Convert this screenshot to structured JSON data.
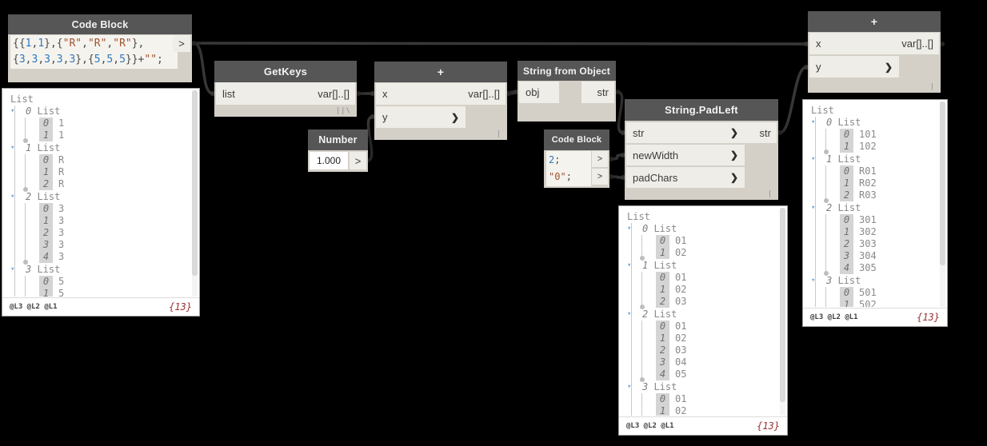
{
  "glyphs": {
    "chevron": "❯",
    "list_arrow": "▾"
  },
  "colors": {
    "canvas_bg": "#000000",
    "node_header": "#565656",
    "node_body": "#d4d0c8",
    "port_slot": "#efede7",
    "wire": "#383838",
    "code_number": "#2e77bd",
    "code_string": "#a0522d",
    "preview_count": "#9b3030"
  },
  "nodes": {
    "code_block_1": {
      "title": "Code Block",
      "output_label": ">",
      "code": [
        [
          {
            "t": "{{",
            "c": "p"
          },
          {
            "t": "1",
            "c": "n"
          },
          {
            "t": ",",
            "c": "p"
          },
          {
            "t": "1",
            "c": "n"
          },
          {
            "t": "},{",
            "c": "p"
          },
          {
            "t": "\"R\"",
            "c": "s"
          },
          {
            "t": ",",
            "c": "p"
          },
          {
            "t": "\"R\"",
            "c": "s"
          },
          {
            "t": ",",
            "c": "p"
          },
          {
            "t": "\"R\"",
            "c": "s"
          },
          {
            "t": "},",
            "c": "p"
          }
        ],
        [
          {
            "t": "{",
            "c": "p"
          },
          {
            "t": "3",
            "c": "n"
          },
          {
            "t": ",",
            "c": "p"
          },
          {
            "t": "3",
            "c": "n"
          },
          {
            "t": ",",
            "c": "p"
          },
          {
            "t": "3",
            "c": "n"
          },
          {
            "t": ",",
            "c": "p"
          },
          {
            "t": "3",
            "c": "n"
          },
          {
            "t": ",",
            "c": "p"
          },
          {
            "t": "3",
            "c": "n"
          },
          {
            "t": "},{",
            "c": "p"
          },
          {
            "t": "5",
            "c": "n"
          },
          {
            "t": ",",
            "c": "p"
          },
          {
            "t": "5",
            "c": "n"
          },
          {
            "t": ",",
            "c": "p"
          },
          {
            "t": "5",
            "c": "n"
          },
          {
            "t": "}}+",
            "c": "p"
          },
          {
            "t": "\"\"",
            "c": "s"
          },
          {
            "t": ";",
            "c": "p"
          }
        ]
      ]
    },
    "getkeys": {
      "title": "GetKeys",
      "inputs": [
        "list"
      ],
      "output": "var[]..[]",
      "lacing": "||\\"
    },
    "number": {
      "title": "Number",
      "value": "1.000",
      "output_label": ">"
    },
    "plus_mid": {
      "title": "+",
      "inputs": [
        "x",
        "y"
      ],
      "output": "var[]..[]",
      "lacing": "|"
    },
    "string_from_object": {
      "title": "String from Object",
      "inputs": [
        "obj"
      ],
      "output": "str"
    },
    "code_block_2": {
      "title": "Code Block",
      "output_label": ">",
      "code": [
        [
          {
            "t": "2",
            "c": "n"
          },
          {
            "t": ";",
            "c": "p"
          }
        ],
        [
          {
            "t": "\"0\"",
            "c": "s"
          },
          {
            "t": ";",
            "c": "p"
          }
        ]
      ]
    },
    "string_padleft": {
      "title": "String.PadLeft",
      "inputs": [
        "str",
        "newWidth",
        "padChars"
      ],
      "output": "str",
      "lacing": "|"
    },
    "plus_right": {
      "title": "+",
      "inputs": [
        "x",
        "y"
      ],
      "output": "var[]..[]",
      "lacing": "|"
    }
  },
  "previews": {
    "left": {
      "root": "List",
      "groups": [
        {
          "index": "0",
          "label": "List",
          "items": [
            "1",
            "1"
          ]
        },
        {
          "index": "1",
          "label": "List",
          "items": [
            "R",
            "R",
            "R"
          ]
        },
        {
          "index": "2",
          "label": "List",
          "items": [
            "3",
            "3",
            "3",
            "3",
            "3"
          ]
        },
        {
          "index": "3",
          "label": "List",
          "items": [
            "5",
            "5"
          ]
        }
      ],
      "levels": "@L3 @L2 @L1",
      "count": "{13}"
    },
    "middle": {
      "root": "List",
      "groups": [
        {
          "index": "0",
          "label": "List",
          "items": [
            "01",
            "02"
          ]
        },
        {
          "index": "1",
          "label": "List",
          "items": [
            "01",
            "02",
            "03"
          ]
        },
        {
          "index": "2",
          "label": "List",
          "items": [
            "01",
            "02",
            "03",
            "04",
            "05"
          ]
        },
        {
          "index": "3",
          "label": "List",
          "items": [
            "01",
            "02"
          ]
        }
      ],
      "levels": "@L3 @L2 @L1",
      "count": "{13}"
    },
    "right": {
      "root": "List",
      "groups": [
        {
          "index": "0",
          "label": "List",
          "items": [
            "101",
            "102"
          ]
        },
        {
          "index": "1",
          "label": "List",
          "items": [
            "R01",
            "R02",
            "R03"
          ]
        },
        {
          "index": "2",
          "label": "List",
          "items": [
            "301",
            "302",
            "303",
            "304",
            "305"
          ]
        },
        {
          "index": "3",
          "label": "List",
          "items": [
            "501",
            "502"
          ]
        }
      ],
      "levels": "@L3 @L2 @L1",
      "count": "{13}"
    }
  },
  "connections": [
    {
      "from": "code_block_1.out",
      "to": "plus_right.x"
    },
    {
      "from": "code_block_1.out",
      "to": "getkeys.list"
    },
    {
      "from": "getkeys.out",
      "to": "plus_mid.x"
    },
    {
      "from": "number.out",
      "to": "plus_mid.y"
    },
    {
      "from": "plus_mid.out",
      "to": "string_from_object.obj"
    },
    {
      "from": "string_from_object.str",
      "to": "string_padleft.str"
    },
    {
      "from": "code_block_2.out1",
      "to": "string_padleft.newWidth"
    },
    {
      "from": "code_block_2.out2",
      "to": "string_padleft.padChars"
    },
    {
      "from": "string_padleft.out",
      "to": "plus_right.y"
    }
  ]
}
